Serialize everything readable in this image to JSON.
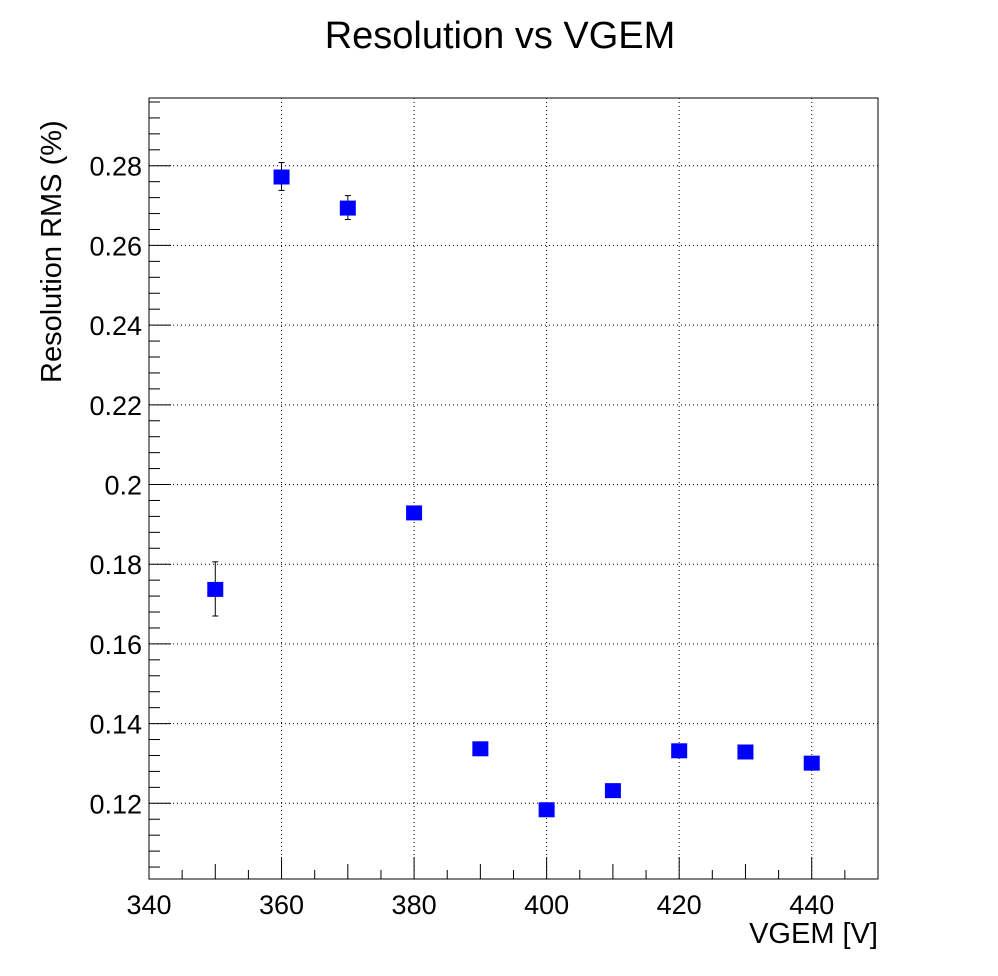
{
  "chart_data": {
    "type": "scatter",
    "title": "Resolution vs VGEM",
    "xlabel": "VGEM [V]",
    "ylabel": "Resolution RMS (%)",
    "xlim": [
      340,
      450
    ],
    "ylim": [
      0.101,
      0.297
    ],
    "x_ticks": [
      340,
      360,
      380,
      400,
      420,
      440
    ],
    "x_tick_labels": [
      "340",
      "360",
      "380",
      "400",
      "420",
      "440"
    ],
    "y_ticks": [
      0.12,
      0.14,
      0.16,
      0.18,
      0.2,
      0.22,
      0.24,
      0.26,
      0.28
    ],
    "y_tick_labels": [
      "0.12",
      "0.14",
      "0.16",
      "0.18",
      "0.2",
      "0.22",
      "0.24",
      "0.26",
      "0.28"
    ],
    "grid": true,
    "marker_color": "#0000ff",
    "marker_shape": "square",
    "series": [
      {
        "x": [
          350,
          360,
          370,
          380,
          390,
          400,
          410,
          420,
          430,
          440
        ],
        "y": [
          0.1738,
          0.2773,
          0.2695,
          0.193,
          0.1338,
          0.1185,
          0.1233,
          0.1333,
          0.133,
          0.1302
        ],
        "y_err": [
          0.0068,
          0.0035,
          0.003,
          0.001,
          0.0006,
          0.0005,
          0.0005,
          0.0005,
          0.0005,
          0.0005
        ]
      }
    ]
  }
}
